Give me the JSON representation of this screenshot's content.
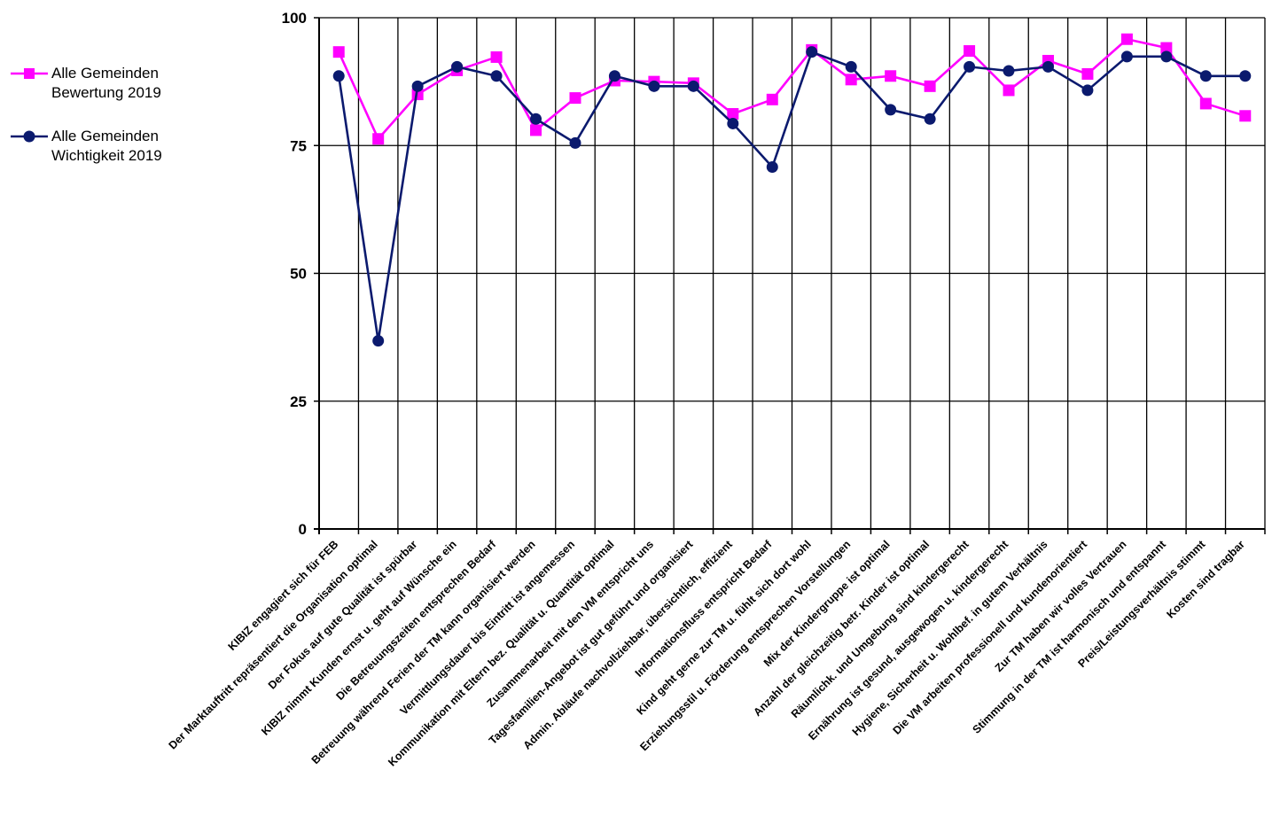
{
  "chart_data": {
    "type": "line",
    "ylim": [
      0,
      100
    ],
    "yticks": [
      0,
      25,
      50,
      75,
      100
    ],
    "grid": true,
    "legend_position": "top-left",
    "categories": [
      "KIBIZ engagiert sich für FEB",
      "Der Marktauftritt repräsentiert die Organisation optimal",
      "Der Fokus auf gute Qualität ist spürbar",
      "KIBIZ nimmt Kunden ernst u. geht auf Wünsche ein",
      "Die Betreuungszeiten entsprechen Bedarf",
      "Betreuung während Ferien der TM kann organisiert werden",
      "Vermittlungsdauer bis Eintritt ist angemessen",
      "Kommunikation mit Eltern bez. Qualität u. Quantität optimal",
      "Zusammenarbeit mit den VM entspricht uns",
      "Tagesfamilien-Angebot ist gut geführt und organisiert",
      "Admin. Abläufe nachvollziehbar, übersichtlich, effizient",
      "Informationsfluss entspricht Bedarf",
      "Kind geht gerne zur TM u. fühlt sich dort wohl",
      "Erziehungsstil u. Förderung entsprechen Vorstellungen",
      "Mix der Kindergruppe ist optimal",
      "Anzahl der gleichzeitig betr. Kinder ist optimal",
      "Räumlichk. und Umgebung sind kindergerecht",
      "Ernährung ist gesund, ausgewogen u. kindergerecht",
      "Hygiene, Sicherheit u. Wohlbef. in gutem Verhältnis",
      "Die VM arbeiten professionell und kundenorientiert",
      "Zur TM haben wir volles Vertrauen",
      "Stimmung in der TM ist harmonisch und entspannt",
      "Preis/Leistungsverhältnis stimmt",
      "Kosten sind tragbar"
    ],
    "series": [
      {
        "name": "Alle Gemeinden\nBewertung 2019",
        "color": "#ff00ff",
        "marker": "square",
        "values": [
          93.3,
          76.3,
          85.0,
          89.7,
          92.3,
          78.0,
          84.3,
          87.7,
          87.5,
          87.2,
          81.2,
          84.0,
          93.7,
          87.9,
          88.6,
          86.6,
          93.5,
          85.8,
          91.6,
          89.0,
          95.8,
          94.1,
          83.2,
          80.8
        ]
      },
      {
        "name": "Alle Gemeinden\nWichtigkeit 2019",
        "color": "#0b1a6e",
        "marker": "circle",
        "values": [
          88.6,
          36.8,
          86.6,
          90.4,
          88.6,
          80.2,
          75.5,
          88.6,
          86.6,
          86.6,
          79.3,
          70.8,
          93.3,
          90.4,
          82.0,
          80.2,
          90.4,
          89.6,
          90.4,
          85.8,
          92.4,
          92.4,
          88.6,
          88.6
        ]
      }
    ]
  }
}
